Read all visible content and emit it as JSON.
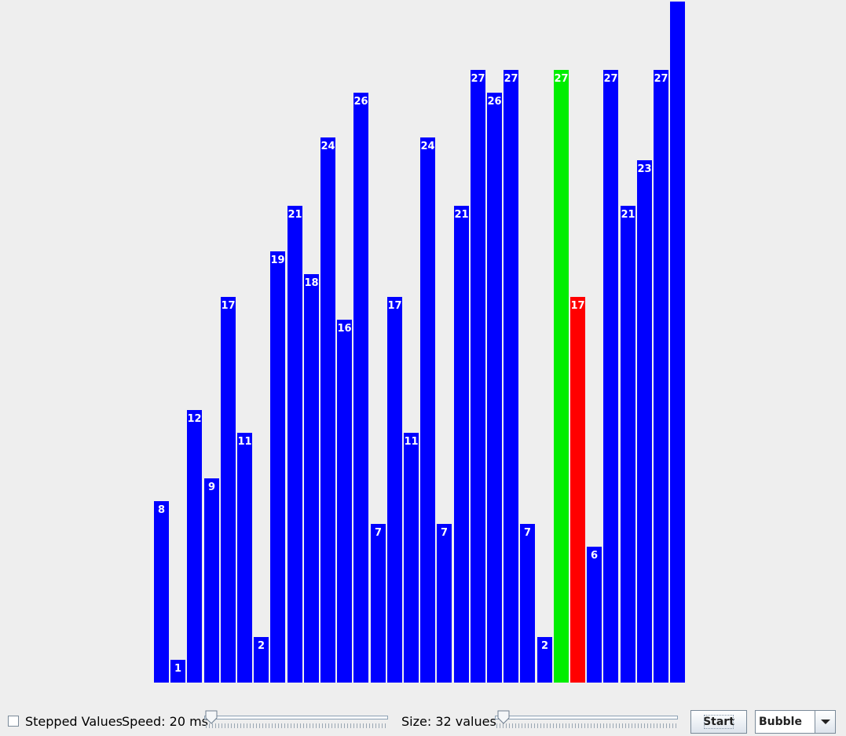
{
  "chart_data": {
    "type": "bar",
    "values": [
      8,
      1,
      12,
      9,
      17,
      11,
      2,
      19,
      21,
      18,
      24,
      16,
      26,
      7,
      17,
      11,
      24,
      7,
      21,
      27,
      26,
      27,
      7,
      2,
      27,
      17,
      6,
      27,
      21,
      23,
      27,
      30
    ],
    "labels": [
      "8",
      "1",
      "12",
      "9",
      "17",
      "11",
      "2",
      "19",
      "21",
      "18",
      "24",
      "16",
      "26",
      "7",
      "17",
      "11",
      "24",
      "7",
      "21",
      "27",
      "26",
      "27",
      "7",
      "2",
      "27",
      "17",
      "6",
      "27",
      "21",
      "23",
      "27",
      ""
    ],
    "colors": {
      "default": "#0000ff",
      "compare": "#00ee00",
      "swap": "#ff0000"
    },
    "highlight": {
      "compare_index": 24,
      "swap_index": 25
    }
  },
  "controls": {
    "stepped_label": "Stepped Values",
    "stepped_checked": false,
    "speed_label": "Speed: 20 ms",
    "speed_fraction": 0.02,
    "size_label": "Size: 32 values",
    "size_fraction": 0.05,
    "start_label": "Start",
    "algorithm_value": "Bubble"
  },
  "icons": {
    "combo_arrow": "chevron-down-icon",
    "checkbox": "checkbox-icon"
  }
}
